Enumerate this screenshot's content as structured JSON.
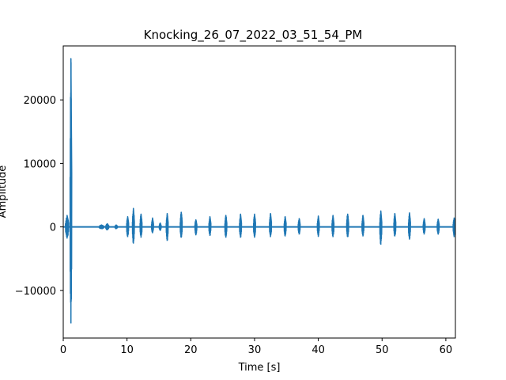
{
  "chart_data": {
    "type": "line",
    "title": "Knocking_26_07_2022_03_51_54_PM",
    "xlabel": "Time [s]",
    "ylabel": "Amplitude",
    "xlim": [
      0,
      61.5
    ],
    "ylim": [
      -17500,
      28500
    ],
    "xticks": [
      0,
      10,
      20,
      30,
      40,
      50,
      60
    ],
    "yticks": [
      -10000,
      0,
      10000,
      20000
    ],
    "grid": false,
    "series": [
      {
        "color": "#1f77b4",
        "bursts": [
          {
            "t": 0.6,
            "max": 1800,
            "min": -1800,
            "width": 0.5
          },
          {
            "t": 1.2,
            "max": 26500,
            "min": -15200,
            "width": 0.25
          },
          {
            "t": 6.0,
            "max": 300,
            "min": -300,
            "width": 0.8
          },
          {
            "t": 6.9,
            "max": 500,
            "min": -500,
            "width": 0.5
          },
          {
            "t": 8.3,
            "max": 300,
            "min": -300,
            "width": 0.4
          },
          {
            "t": 10.1,
            "max": 1600,
            "min": -1600,
            "width": 0.3
          },
          {
            "t": 11.0,
            "max": 2900,
            "min": -2600,
            "width": 0.3
          },
          {
            "t": 12.2,
            "max": 2000,
            "min": -1700,
            "width": 0.3
          },
          {
            "t": 14.0,
            "max": 1400,
            "min": -1000,
            "width": 0.3
          },
          {
            "t": 15.2,
            "max": 600,
            "min": -600,
            "width": 0.3
          },
          {
            "t": 16.3,
            "max": 2100,
            "min": -2200,
            "width": 0.3
          },
          {
            "t": 18.5,
            "max": 2300,
            "min": -1700,
            "width": 0.3
          },
          {
            "t": 20.8,
            "max": 1100,
            "min": -1300,
            "width": 0.3
          },
          {
            "t": 23.0,
            "max": 1600,
            "min": -1400,
            "width": 0.3
          },
          {
            "t": 25.5,
            "max": 1800,
            "min": -1700,
            "width": 0.3
          },
          {
            "t": 27.8,
            "max": 2000,
            "min": -1700,
            "width": 0.3
          },
          {
            "t": 30.0,
            "max": 2000,
            "min": -1700,
            "width": 0.3
          },
          {
            "t": 32.5,
            "max": 2100,
            "min": -1600,
            "width": 0.3
          },
          {
            "t": 34.8,
            "max": 1600,
            "min": -1500,
            "width": 0.3
          },
          {
            "t": 37.0,
            "max": 1300,
            "min": -1200,
            "width": 0.3
          },
          {
            "t": 40.0,
            "max": 1700,
            "min": -1500,
            "width": 0.3
          },
          {
            "t": 42.3,
            "max": 1800,
            "min": -1600,
            "width": 0.3
          },
          {
            "t": 44.6,
            "max": 2000,
            "min": -1600,
            "width": 0.3
          },
          {
            "t": 47.0,
            "max": 1800,
            "min": -1500,
            "width": 0.3
          },
          {
            "t": 49.8,
            "max": 2500,
            "min": -2800,
            "width": 0.3
          },
          {
            "t": 52.0,
            "max": 2100,
            "min": -1500,
            "width": 0.3
          },
          {
            "t": 54.3,
            "max": 2200,
            "min": -2000,
            "width": 0.3
          },
          {
            "t": 56.6,
            "max": 1300,
            "min": -1200,
            "width": 0.3
          },
          {
            "t": 58.8,
            "max": 1200,
            "min": -1200,
            "width": 0.3
          },
          {
            "t": 61.3,
            "max": 1400,
            "min": -1600,
            "width": 0.3
          }
        ]
      }
    ]
  }
}
